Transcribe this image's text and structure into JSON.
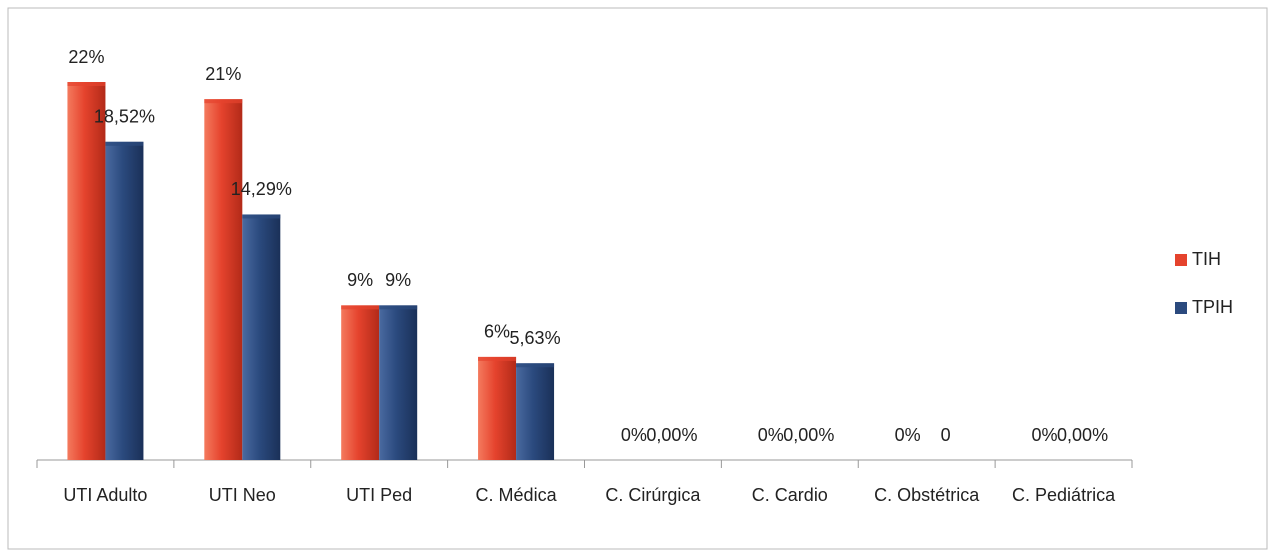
{
  "chart_data": {
    "type": "bar",
    "categories": [
      "UTI Adulto",
      "UTI Neo",
      "UTI Ped",
      "C. Médica",
      "C. Cirúrgica",
      "C. Cardio",
      "C. Obstétrica",
      "C. Pediátrica"
    ],
    "series": [
      {
        "name": "TIH",
        "color": "#e5432d",
        "values": [
          22,
          21,
          9,
          6,
          0,
          0,
          0,
          0
        ],
        "value_labels": [
          "22%",
          "21%",
          "9%",
          "6%",
          "0%",
          "0%",
          "0%",
          "0%"
        ]
      },
      {
        "name": "TPIH",
        "color": "#2b4a7e",
        "values": [
          18.52,
          14.29,
          9,
          5.63,
          0,
          0,
          0,
          0
        ],
        "value_labels": [
          "18,52%",
          "14,29%",
          "9%",
          "5,63%",
          "0,00%",
          "0,00%",
          "0",
          "0,00%"
        ]
      }
    ],
    "legend": "right"
  }
}
